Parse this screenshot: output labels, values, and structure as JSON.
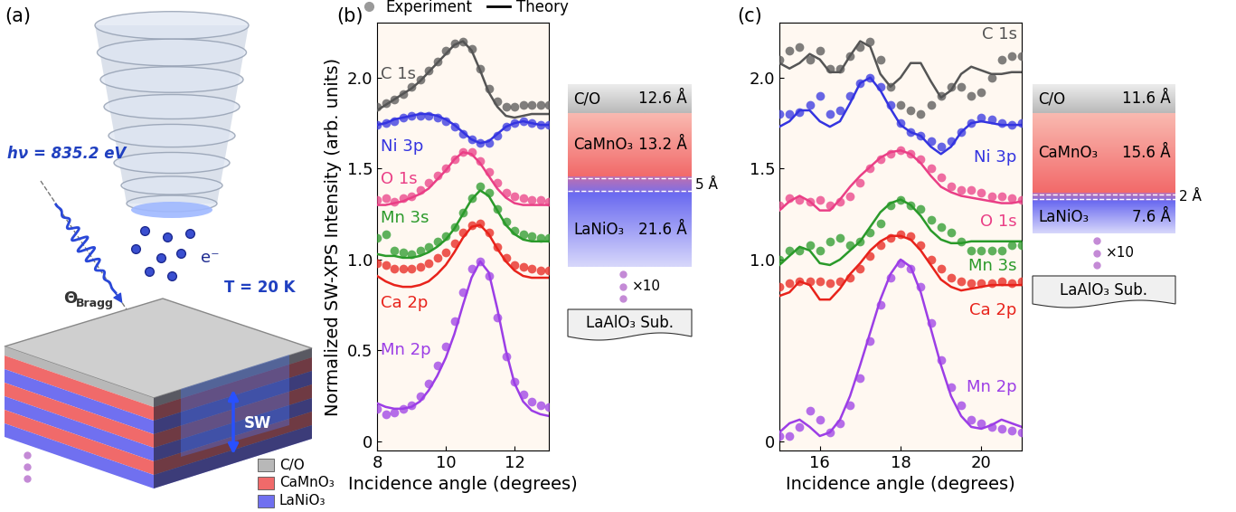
{
  "chart_data": [
    {
      "type": "line",
      "title": "(b)",
      "x_label": "Incidence angle (degrees)",
      "y_label": "Normalized SW-XPS Intensity (arb. units)",
      "xlim": [
        8,
        13
      ],
      "xticks": [
        8,
        10,
        12
      ],
      "ylim": [
        -0.05,
        2.3
      ],
      "yticks": [
        0,
        0.5,
        {
          "value": 1,
          "label": "1.0"
        },
        1.5,
        {
          "value": 2,
          "label": "2.0"
        }
      ],
      "legend": "top",
      "legend_entries": [
        {
          "name": "Experiment",
          "color": "#9a9a9a",
          "marker": "o"
        },
        {
          "name": "Theory",
          "color": "#000000",
          "line_style": "solid"
        }
      ],
      "x": [
        8,
        8.25,
        8.5,
        8.75,
        9,
        9.25,
        9.5,
        9.75,
        10,
        10.25,
        10.5,
        10.75,
        11,
        11.25,
        11.5,
        11.75,
        12,
        12.25,
        12.5,
        12.75,
        13
      ],
      "series": [
        {
          "name": "C 1s",
          "color": "#555555",
          "values": [
            1.84,
            1.86,
            1.88,
            1.91,
            1.95,
            1.99,
            2.04,
            2.09,
            2.15,
            2.19,
            2.2,
            2.16,
            2.05,
            1.94,
            1.87,
            1.84,
            1.84,
            1.85,
            1.85,
            1.85,
            1.85
          ],
          "theory": [
            1.82,
            1.85,
            1.88,
            1.91,
            1.94,
            1.98,
            2.03,
            2.08,
            2.13,
            2.18,
            2.2,
            2.15,
            2.04,
            1.92,
            1.84,
            1.79,
            1.78,
            1.79,
            1.8,
            1.8,
            1.8
          ]
        },
        {
          "name": "Ni 3p",
          "color": "#3434e0",
          "values": [
            1.74,
            1.75,
            1.76,
            1.78,
            1.79,
            1.79,
            1.79,
            1.78,
            1.76,
            1.73,
            1.69,
            1.66,
            1.64,
            1.64,
            1.68,
            1.73,
            1.75,
            1.76,
            1.75,
            1.74,
            1.74
          ],
          "theory": [
            1.74,
            1.75,
            1.77,
            1.78,
            1.79,
            1.8,
            1.8,
            1.79,
            1.77,
            1.74,
            1.7,
            1.66,
            1.64,
            1.65,
            1.69,
            1.73,
            1.75,
            1.76,
            1.75,
            1.74,
            1.74
          ]
        },
        {
          "name": "O 1s",
          "color": "#ea3f86",
          "values": [
            1.33,
            1.34,
            1.32,
            1.34,
            1.35,
            1.38,
            1.42,
            1.46,
            1.5,
            1.55,
            1.59,
            1.59,
            1.54,
            1.48,
            1.42,
            1.37,
            1.35,
            1.34,
            1.33,
            1.33,
            1.32
          ],
          "theory": [
            1.3,
            1.3,
            1.31,
            1.32,
            1.34,
            1.36,
            1.39,
            1.44,
            1.49,
            1.55,
            1.59,
            1.58,
            1.53,
            1.46,
            1.39,
            1.34,
            1.31,
            1.3,
            1.3,
            1.3,
            1.3
          ]
        },
        {
          "name": "Mn 3s",
          "color": "#2a9a2a",
          "values": [
            1.12,
            1.14,
            1.05,
            1.04,
            1.03,
            1.05,
            1.07,
            1.1,
            1.13,
            1.18,
            1.26,
            1.34,
            1.4,
            1.37,
            1.28,
            1.21,
            1.16,
            1.14,
            1.13,
            1.12,
            1.12
          ],
          "theory": [
            1.03,
            1.02,
            1.02,
            1.01,
            1.01,
            1.02,
            1.04,
            1.07,
            1.11,
            1.17,
            1.25,
            1.33,
            1.38,
            1.35,
            1.27,
            1.19,
            1.14,
            1.11,
            1.1,
            1.1,
            1.1
          ]
        },
        {
          "name": "Ca 2p",
          "color": "#e8231b",
          "values": [
            0.98,
            0.97,
            0.95,
            0.95,
            0.95,
            0.96,
            0.98,
            1.01,
            1.04,
            1.09,
            1.15,
            1.19,
            1.2,
            1.15,
            1.07,
            1.01,
            0.97,
            0.96,
            0.95,
            0.94,
            0.94
          ],
          "theory": [
            0.91,
            0.88,
            0.86,
            0.85,
            0.85,
            0.86,
            0.88,
            0.92,
            0.97,
            1.04,
            1.12,
            1.18,
            1.19,
            1.14,
            1.06,
            0.99,
            0.94,
            0.91,
            0.9,
            0.9,
            0.9
          ]
        },
        {
          "name": "Mn 2p",
          "color": "#9c3ee6",
          "values": [
            0.18,
            0.15,
            0.16,
            0.18,
            0.2,
            0.25,
            0.32,
            0.42,
            0.52,
            0.66,
            0.82,
            0.95,
            0.99,
            0.91,
            0.68,
            0.47,
            0.33,
            0.26,
            0.22,
            0.2,
            0.19
          ],
          "theory": [
            0.21,
            0.19,
            0.18,
            0.18,
            0.19,
            0.22,
            0.28,
            0.36,
            0.46,
            0.59,
            0.75,
            0.9,
            0.99,
            0.93,
            0.73,
            0.5,
            0.32,
            0.22,
            0.17,
            0.15,
            0.14
          ]
        }
      ]
    },
    {
      "type": "line",
      "title": "(c)",
      "x_label": "Incidence angle (degrees)",
      "xlim": [
        15,
        21
      ],
      "xticks": [
        16,
        18,
        20
      ],
      "ylim": [
        -0.05,
        2.3
      ],
      "yticks": [
        0,
        {
          "value": 1,
          "label": "1.0"
        },
        1.5,
        {
          "value": 2,
          "label": "2.0"
        }
      ],
      "x": [
        15,
        15.25,
        15.5,
        15.75,
        16,
        16.25,
        16.5,
        16.75,
        17,
        17.25,
        17.5,
        17.75,
        18,
        18.25,
        18.5,
        18.75,
        19,
        19.25,
        19.5,
        19.75,
        20,
        20.25,
        20.5,
        20.75,
        21
      ],
      "series": [
        {
          "name": "C 1s",
          "color": "#555555",
          "values": [
            2.1,
            2.15,
            2.17,
            2.1,
            2.15,
            2.05,
            2.05,
            2.12,
            2.17,
            2.2,
            2.1,
            1.95,
            1.85,
            1.82,
            1.8,
            1.85,
            1.9,
            1.95,
            1.95,
            1.9,
            1.92,
            2.0,
            2.1,
            2.12,
            2.12
          ],
          "theory": [
            2.08,
            2.05,
            2.08,
            2.13,
            2.1,
            2.03,
            2.03,
            2.12,
            2.2,
            2.17,
            2.02,
            1.95,
            2.0,
            2.08,
            2.08,
            1.98,
            1.89,
            1.93,
            2.02,
            2.06,
            2.04,
            2.02,
            2.02,
            2.03,
            2.03
          ]
        },
        {
          "name": "Ni 3p",
          "color": "#3434e0",
          "values": [
            1.8,
            1.8,
            1.81,
            1.85,
            1.9,
            1.8,
            1.82,
            1.9,
            1.97,
            2.0,
            1.95,
            1.85,
            1.75,
            1.7,
            1.68,
            1.65,
            1.62,
            1.65,
            1.7,
            1.75,
            1.78,
            1.77,
            1.75,
            1.74,
            1.75
          ],
          "theory": [
            1.73,
            1.76,
            1.82,
            1.82,
            1.76,
            1.73,
            1.76,
            1.86,
            1.97,
            2.0,
            1.93,
            1.83,
            1.74,
            1.7,
            1.68,
            1.62,
            1.58,
            1.62,
            1.7,
            1.75,
            1.76,
            1.75,
            1.74,
            1.74,
            1.74
          ]
        },
        {
          "name": "O 1s",
          "color": "#ea3f86",
          "values": [
            1.3,
            1.34,
            1.33,
            1.32,
            1.33,
            1.3,
            1.32,
            1.35,
            1.42,
            1.5,
            1.55,
            1.58,
            1.6,
            1.58,
            1.55,
            1.5,
            1.45,
            1.4,
            1.38,
            1.38,
            1.37,
            1.35,
            1.35,
            1.34,
            1.33
          ],
          "theory": [
            1.27,
            1.32,
            1.35,
            1.32,
            1.27,
            1.27,
            1.33,
            1.4,
            1.46,
            1.51,
            1.56,
            1.59,
            1.6,
            1.58,
            1.53,
            1.46,
            1.4,
            1.37,
            1.35,
            1.34,
            1.33,
            1.32,
            1.31,
            1.31,
            1.32
          ]
        },
        {
          "name": "Mn 3s",
          "color": "#2a9a2a",
          "values": [
            1.0,
            1.05,
            1.05,
            1.08,
            1.05,
            1.1,
            1.12,
            1.08,
            1.1,
            1.15,
            1.2,
            1.3,
            1.33,
            1.3,
            1.28,
            1.22,
            1.18,
            1.15,
            1.1,
            1.05,
            1.05,
            1.05,
            1.05,
            1.08,
            1.08
          ],
          "theory": [
            0.97,
            1.02,
            1.07,
            1.05,
            0.98,
            0.97,
            1.0,
            1.05,
            1.1,
            1.18,
            1.26,
            1.31,
            1.33,
            1.3,
            1.24,
            1.16,
            1.11,
            1.09,
            1.09,
            1.1,
            1.1,
            1.1,
            1.1,
            1.1,
            1.1
          ]
        },
        {
          "name": "Ca 2p",
          "color": "#e8231b",
          "values": [
            0.85,
            0.87,
            0.88,
            0.88,
            0.88,
            0.87,
            0.88,
            0.9,
            0.95,
            1.02,
            1.08,
            1.12,
            1.14,
            1.13,
            1.08,
            1.0,
            0.95,
            0.9,
            0.88,
            0.87,
            0.87,
            0.87,
            0.88,
            0.87,
            0.88
          ],
          "theory": [
            0.8,
            0.82,
            0.88,
            0.86,
            0.78,
            0.78,
            0.84,
            0.92,
            0.98,
            1.05,
            1.1,
            1.13,
            1.13,
            1.11,
            1.05,
            0.97,
            0.89,
            0.85,
            0.83,
            0.84,
            0.85,
            0.86,
            0.86,
            0.86,
            0.86
          ]
        },
        {
          "name": "Mn 2p",
          "color": "#9c3ee6",
          "values": [
            0.03,
            0.03,
            0.08,
            0.17,
            0.12,
            0.05,
            0.1,
            0.2,
            0.35,
            0.55,
            0.75,
            0.9,
            0.98,
            0.95,
            0.85,
            0.65,
            0.45,
            0.3,
            0.2,
            0.12,
            0.1,
            0.08,
            0.07,
            0.06,
            0.05
          ],
          "theory": [
            0.05,
            0.1,
            0.12,
            0.08,
            0.03,
            0.05,
            0.12,
            0.25,
            0.42,
            0.6,
            0.78,
            0.92,
            1.0,
            0.96,
            0.82,
            0.62,
            0.42,
            0.25,
            0.14,
            0.08,
            0.07,
            0.09,
            0.12,
            0.1,
            0.08
          ]
        }
      ]
    }
  ],
  "diagram": {
    "label": "(a)",
    "photon": "hν = 835.2 eV",
    "electron": "e⁻",
    "angle_symbol": "Θ",
    "angle_subscript": "Bragg",
    "temperature": "T = 20 K",
    "standing_wave": "SW",
    "layer_key": [
      "C/O",
      "CaMnO₃",
      "LaNiO₃"
    ]
  },
  "stacks": [
    {
      "layers": [
        {
          "name": "C/O",
          "thickness": "12.6 Å"
        },
        {
          "name": "CaMnO₃",
          "thickness": "13.2 Å"
        },
        {
          "name": "LaNiO₃",
          "thickness": "21.6 Å"
        }
      ],
      "interface": "5 Å",
      "repeat": "×10",
      "substrate": "LaAlO₃ Sub."
    },
    {
      "layers": [
        {
          "name": "C/O",
          "thickness": "11.6 Å"
        },
        {
          "name": "CaMnO₃",
          "thickness": "15.6 Å"
        },
        {
          "name": "LaNiO₃",
          "thickness": "7.6 Å"
        }
      ],
      "interface": "2 Å",
      "repeat": "×10",
      "substrate": "LaAlO₃ Sub."
    }
  ]
}
